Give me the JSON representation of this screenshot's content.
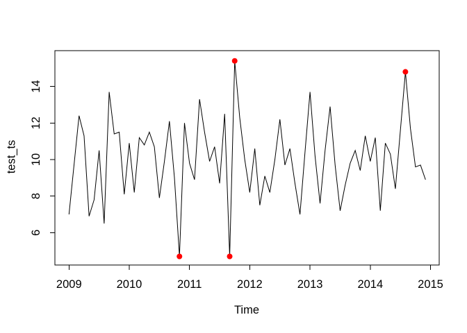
{
  "chart_data": {
    "type": "line",
    "title": "",
    "xlabel": "Time",
    "ylabel": "test_ts",
    "start_year": 2009,
    "frequency": 12,
    "x_ticks": [
      2009,
      2010,
      2011,
      2012,
      2013,
      2014,
      2015
    ],
    "y_ticks": [
      6,
      8,
      10,
      12,
      14
    ],
    "xlim": [
      2008.766,
      2015.144
    ],
    "ylim": [
      4.23,
      15.96
    ],
    "grid": false,
    "legend": "none",
    "line_color": "#000000",
    "outlier_color": "#ff0000",
    "background_color": "#ffffff",
    "values": [
      7.0,
      9.7,
      12.4,
      11.3,
      6.9,
      7.8,
      10.5,
      6.5,
      13.7,
      11.4,
      11.5,
      8.1,
      10.9,
      8.2,
      11.2,
      10.8,
      11.5,
      10.7,
      7.9,
      9.9,
      12.1,
      9.0,
      4.7,
      12.0,
      9.8,
      8.9,
      13.3,
      11.5,
      9.9,
      10.7,
      8.7,
      12.5,
      4.7,
      15.4,
      12.3,
      10.0,
      8.2,
      10.6,
      7.5,
      9.1,
      8.2,
      10.0,
      12.2,
      9.7,
      10.6,
      8.7,
      7.0,
      10.4,
      13.7,
      10.2,
      7.6,
      10.5,
      12.9,
      9.7,
      7.2,
      8.6,
      9.8,
      10.5,
      9.4,
      11.3,
      9.9,
      11.2,
      7.2,
      10.9,
      10.3,
      8.4,
      11.6,
      14.8,
      11.7,
      9.6,
      9.7,
      8.9
    ],
    "outlier_indices": [
      22,
      32,
      33,
      67
    ]
  }
}
